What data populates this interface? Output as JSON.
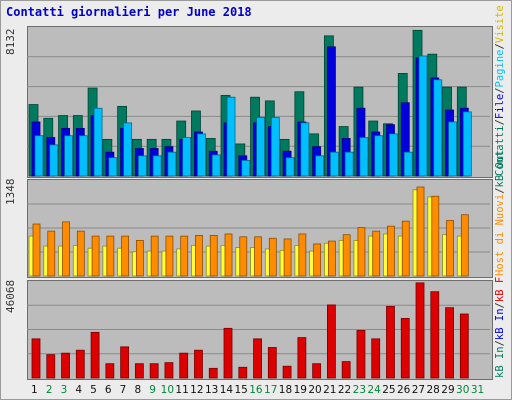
{
  "chart_data": [
    {
      "type": "bar",
      "title": "Contatti giornalieri per June 2018",
      "ylabel_max": "8132",
      "ylim": [
        0,
        8132
      ],
      "categories": [
        "1",
        "2",
        "3",
        "4",
        "5",
        "6",
        "7",
        "8",
        "9",
        "10",
        "11",
        "12",
        "13",
        "14",
        "15",
        "16",
        "17",
        "18",
        "19",
        "20",
        "21",
        "22",
        "23",
        "24",
        "25",
        "26",
        "27",
        "28",
        "29",
        "30",
        "31"
      ],
      "series": [
        {
          "name": "Contatti",
          "color": "#007a5e",
          "values": [
            3900,
            3150,
            3300,
            3300,
            4800,
            2000,
            3800,
            2000,
            2000,
            2000,
            3000,
            3550,
            2050,
            4400,
            1750,
            4300,
            4100,
            2000,
            4600,
            2300,
            7650,
            2700,
            4850,
            3000,
            2850,
            5600,
            7950,
            6650,
            4850,
            4850,
            null
          ]
        },
        {
          "name": "File",
          "color": "#0000dd",
          "values": [
            2950,
            2100,
            2600,
            2600,
            3300,
            1300,
            2600,
            1500,
            1500,
            1600,
            2000,
            2400,
            1350,
            2900,
            1100,
            2900,
            2700,
            1350,
            2950,
            1600,
            7050,
            2050,
            3700,
            2400,
            2800,
            4000,
            6450,
            5350,
            3600,
            3700,
            null
          ]
        },
        {
          "name": "Pagine",
          "color": "#00bfff",
          "values": [
            2200,
            1700,
            2200,
            2200,
            3700,
            1000,
            2900,
            1100,
            1100,
            1300,
            2100,
            2300,
            1150,
            4300,
            850,
            3200,
            3200,
            1000,
            2900,
            1100,
            1300,
            1300,
            2100,
            2200,
            2300,
            1300,
            6550,
            5250,
            2950,
            3500,
            null
          ]
        }
      ]
    },
    {
      "type": "bar",
      "ylabel_max": "1348",
      "ylim": [
        0,
        1348
      ],
      "categories": [
        "1",
        "2",
        "3",
        "4",
        "5",
        "6",
        "7",
        "8",
        "9",
        "10",
        "11",
        "12",
        "13",
        "14",
        "15",
        "16",
        "17",
        "18",
        "19",
        "20",
        "21",
        "22",
        "23",
        "24",
        "25",
        "26",
        "27",
        "28",
        "29",
        "30",
        "31"
      ],
      "series": [
        {
          "name": "Host",
          "color": "#ffff33",
          "values": [
            560,
            420,
            420,
            430,
            390,
            420,
            390,
            340,
            350,
            350,
            380,
            430,
            420,
            430,
            400,
            400,
            380,
            360,
            430,
            350,
            460,
            500,
            500,
            560,
            590,
            560,
            1210,
            1110,
            580,
            560,
            null
          ]
        },
        {
          "name": "Nuovi di Host",
          "color": "#ff8c00",
          "values": [
            730,
            630,
            760,
            630,
            560,
            560,
            560,
            500,
            560,
            560,
            560,
            570,
            570,
            590,
            550,
            550,
            530,
            520,
            590,
            450,
            490,
            580,
            680,
            630,
            700,
            770,
            1250,
            1120,
            780,
            860,
            null
          ]
        }
      ]
    },
    {
      "type": "bar",
      "ylabel_max": "46068",
      "ylim": [
        0,
        46068
      ],
      "categories": [
        "1",
        "2",
        "3",
        "4",
        "5",
        "6",
        "7",
        "8",
        "9",
        "10",
        "11",
        "12",
        "13",
        "14",
        "15",
        "16",
        "17",
        "18",
        "19",
        "20",
        "21",
        "22",
        "23",
        "24",
        "25",
        "26",
        "27",
        "28",
        "29",
        "30",
        "31"
      ],
      "series": [
        {
          "name": "kB F",
          "color": "#dd0000",
          "values": [
            18600,
            11100,
            11800,
            13200,
            21700,
            6800,
            14800,
            6800,
            6800,
            7300,
            11800,
            13200,
            4600,
            23600,
            5100,
            18600,
            14500,
            5600,
            19200,
            6800,
            34700,
            7800,
            22600,
            18600,
            34000,
            28300,
            45200,
            41000,
            33400,
            30400,
            null
          ]
        }
      ]
    }
  ],
  "right_labels": {
    "top": [
      {
        "text": "Contatti",
        "color": "#007a5e"
      },
      {
        "text": "/",
        "color": "#333333"
      },
      {
        "text": "File",
        "color": "#0000dd"
      },
      {
        "text": "/",
        "color": "#333333"
      },
      {
        "text": "Pagine",
        "color": "#00bfff"
      },
      {
        "text": "/",
        "color": "#333333"
      },
      {
        "text": "Visite",
        "color": "#d6b800"
      }
    ],
    "middle": [
      {
        "text": "Host",
        "color": "#ff8c00"
      },
      {
        "text": " di ",
        "color": "#ff8c00"
      },
      {
        "text": "Nuovi",
        "color": "#ff8c00"
      },
      {
        "text": "/",
        "color": "#333333"
      },
      {
        "text": "kB Out",
        "color": "#007a5e"
      }
    ],
    "bottom": [
      {
        "text": "kB In",
        "color": "#007a5e"
      },
      {
        "text": "/",
        "color": "#333333"
      },
      {
        "text": "kB In",
        "color": "#0000dd"
      },
      {
        "text": "/",
        "color": "#333333"
      },
      {
        "text": "kB F",
        "color": "#dd0000"
      }
    ]
  },
  "day_label_colors": {
    "weekday": "#111111",
    "weekend": "#00883a"
  },
  "weekend_days": [
    "2",
    "3",
    "9",
    "10",
    "16",
    "17",
    "23",
    "24",
    "30",
    "31"
  ]
}
